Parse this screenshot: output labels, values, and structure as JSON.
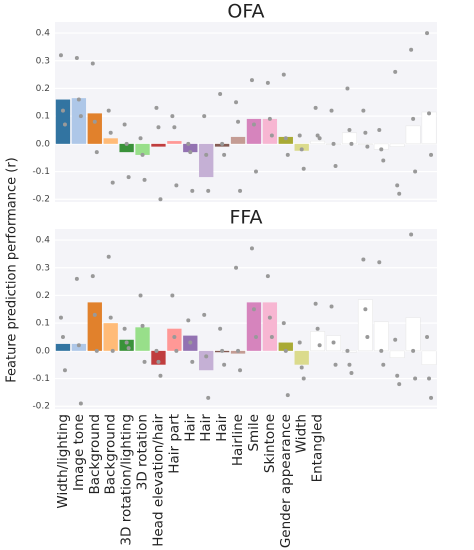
{
  "ylabel": "Feature prediction performance (r)",
  "chart_data": [
    {
      "type": "bar",
      "title": "OFA",
      "values": [
        0.16,
        0.165,
        0.11,
        0.02,
        -0.03,
        -0.04,
        -0.01,
        0.01,
        -0.03,
        -0.12,
        -0.01,
        0.025,
        0.09,
        0.09,
        0.025,
        -0.025,
        0.01,
        0.0,
        0.04,
        0.0,
        -0.02,
        -0.01,
        0.065,
        0.115
      ],
      "points": [
        [
          0.32,
          0.12,
          0.07
        ],
        [
          0.31,
          0.16,
          0.1
        ],
        [
          0.29,
          0.08,
          -0.03
        ],
        [
          0.12,
          0.04,
          -0.14
        ],
        [
          0.07,
          0.0,
          -0.12
        ],
        [
          0.02,
          -0.04,
          -0.13
        ],
        [
          0.13,
          0.06,
          -0.2
        ],
        [
          0.1,
          0.06,
          -0.15
        ],
        [
          0.0,
          -0.03,
          -0.17
        ],
        [
          0.1,
          -0.04,
          -0.17
        ],
        [
          0.18,
          0.0,
          -0.04
        ],
        [
          0.15,
          0.08,
          -0.17
        ],
        [
          0.23,
          0.07,
          -0.1
        ],
        [
          0.22,
          0.09,
          0.03
        ],
        [
          0.25,
          0.02,
          -0.04
        ],
        [
          0.03,
          -0.02,
          -0.09
        ],
        [
          0.13,
          0.03,
          0.02
        ],
        [
          0.12,
          0.0,
          -0.08
        ],
        [
          0.2,
          0.05,
          0.0
        ],
        [
          0.12,
          0.04,
          -0.01
        ],
        [
          0.05,
          -0.02,
          -0.06
        ],
        [
          0.26,
          -0.15,
          -0.18
        ],
        [
          0.34,
          0.09,
          -0.1
        ],
        [
          0.4,
          0.11,
          -0.04
        ]
      ],
      "colors": [
        "#3274a1",
        "#aec7e8",
        "#e1812c",
        "#ffbb78",
        "#3a923a",
        "#98df8a",
        "#c03d3e",
        "#ff9896",
        "#9372b2",
        "#c5b0d5",
        "#845b53",
        "#c49c94",
        "#d684bd",
        "#f7b6d2",
        "#a9aa35",
        "#dbdb8d",
        "#ffffff",
        "#ffffff",
        "#ffffff",
        "#ffffff",
        "#ffffff",
        "#ffffff",
        "#ffffff",
        "#ffffff"
      ],
      "ylim": [
        -0.21,
        0.44
      ],
      "yticks": [
        -0.2,
        -0.1,
        {
          "value": 0,
          "label": "0.0"
        },
        0.1,
        0.2,
        0.3,
        0.4
      ],
      "grid": true
    },
    {
      "type": "bar",
      "title": "FFA",
      "categories": [
        "Width/lighting",
        "Image tone",
        "Background",
        "Background",
        "3D rotation/lighting",
        "3D rotation",
        "Head elevation/hair",
        "Hair part",
        "Hair",
        "Hair",
        "Hair",
        "Hairline",
        "Smile",
        "Skintone",
        "Gender appearance",
        "Width",
        "Entangled",
        null,
        null,
        null,
        null,
        null,
        null,
        null
      ],
      "values": [
        0.025,
        0.025,
        0.175,
        0.1,
        0.04,
        0.085,
        -0.05,
        0.08,
        0.055,
        -0.07,
        -0.005,
        -0.01,
        0.175,
        0.175,
        0.03,
        -0.05,
        0.07,
        0.055,
        -0.005,
        0.185,
        0.105,
        -0.025,
        0.12,
        -0.05
      ],
      "points": [
        [
          0.12,
          0.05,
          -0.07
        ],
        [
          0.26,
          0.02,
          -0.19
        ],
        [
          0.27,
          0.13,
          0.0
        ],
        [
          0.34,
          0.12,
          0.0
        ],
        [
          0.08,
          0.03,
          0.01
        ],
        [
          0.2,
          0.09,
          -0.04
        ],
        [
          0.0,
          -0.04,
          -0.09
        ],
        [
          0.2,
          0.05,
          0.0
        ],
        [
          0.11,
          0.03,
          -0.04
        ],
        [
          0.13,
          -0.02,
          -0.17
        ],
        [
          0.08,
          0.0,
          -0.05
        ],
        [
          0.3,
          0.0,
          -0.07
        ],
        [
          0.37,
          0.15,
          0.05
        ],
        [
          0.27,
          0.12,
          0.05
        ],
        [
          0.1,
          0.0,
          -0.16
        ],
        [
          0.03,
          -0.06,
          -0.1
        ],
        [
          0.17,
          0.08,
          0.02
        ],
        [
          0.16,
          0.03,
          -0.05
        ],
        [
          0.0,
          -0.05,
          -0.08
        ],
        [
          0.33,
          0.15,
          0.05
        ],
        [
          0.32,
          0.0,
          -0.05
        ],
        [
          0.04,
          -0.09,
          -0.12
        ],
        [
          0.42,
          0.0,
          -0.1
        ],
        [
          0.05,
          -0.1,
          -0.17
        ]
      ],
      "colors": [
        "#3274a1",
        "#aec7e8",
        "#e1812c",
        "#ffbb78",
        "#3a923a",
        "#98df8a",
        "#c03d3e",
        "#ff9896",
        "#9372b2",
        "#c5b0d5",
        "#845b53",
        "#c49c94",
        "#d684bd",
        "#f7b6d2",
        "#a9aa35",
        "#dbdb8d",
        "#ffffff",
        "#ffffff",
        "#ffffff",
        "#ffffff",
        "#ffffff",
        "#ffffff",
        "#ffffff",
        "#ffffff"
      ],
      "ylim": [
        -0.21,
        0.44
      ],
      "yticks": [
        -0.2,
        -0.1,
        {
          "value": 0,
          "label": "0.0"
        },
        0.1,
        0.2,
        0.3,
        0.4
      ],
      "grid": true
    }
  ]
}
